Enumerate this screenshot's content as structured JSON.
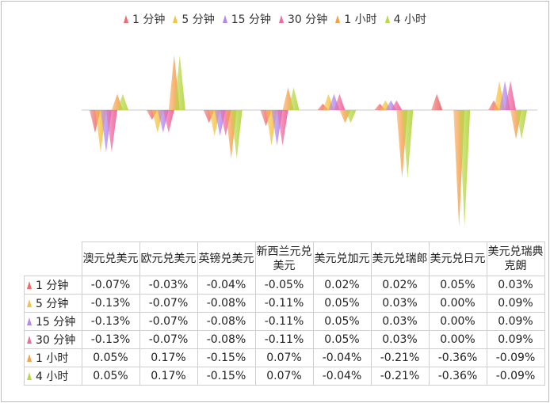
{
  "chart_data": {
    "type": "bar",
    "categories": [
      "澳元兑美元",
      "欧元兑美元",
      "英镑兑美元",
      "新西兰元兑美元",
      "美元兑加元",
      "美元兑瑞郎",
      "美元兑日元",
      "美元兑瑞典克朗"
    ],
    "series": [
      {
        "name": "1 分钟",
        "values": [
          -0.07,
          -0.03,
          -0.04,
          -0.05,
          0.02,
          0.02,
          0.05,
          0.03
        ],
        "labels": [
          "-0.07%",
          "-0.03%",
          "-0.04%",
          "-0.05%",
          "0.02%",
          "0.02%",
          "0.05%",
          "0.03%"
        ],
        "color": "#f06c6c"
      },
      {
        "name": "5 分钟",
        "values": [
          -0.13,
          -0.07,
          -0.08,
          -0.11,
          0.05,
          0.03,
          0.0,
          0.09
        ],
        "labels": [
          "-0.13%",
          "-0.07%",
          "-0.08%",
          "-0.11%",
          "0.05%",
          "0.03%",
          "0.00%",
          "0.09%"
        ],
        "color": "#f5c242"
      },
      {
        "name": "15 分钟",
        "values": [
          -0.13,
          -0.07,
          -0.08,
          -0.11,
          0.05,
          0.03,
          0.0,
          0.09
        ],
        "labels": [
          "-0.13%",
          "-0.07%",
          "-0.08%",
          "-0.11%",
          "0.05%",
          "0.03%",
          "0.00%",
          "0.09%"
        ],
        "color": "#b488f0"
      },
      {
        "name": "30 分钟",
        "values": [
          -0.13,
          -0.07,
          -0.08,
          -0.11,
          0.05,
          0.03,
          0.0,
          0.09
        ],
        "labels": [
          "-0.13%",
          "-0.07%",
          "-0.08%",
          "-0.11%",
          "0.05%",
          "0.03%",
          "0.00%",
          "0.09%"
        ],
        "color": "#f06ca0"
      },
      {
        "name": "1 小时",
        "values": [
          0.05,
          0.17,
          -0.15,
          0.07,
          -0.04,
          -0.21,
          -0.36,
          -0.09
        ],
        "labels": [
          "0.05%",
          "0.17%",
          "-0.15%",
          "0.07%",
          "-0.04%",
          "-0.21%",
          "-0.36%",
          "-0.09%"
        ],
        "color": "#f5a04a"
      },
      {
        "name": "4 小时",
        "values": [
          0.05,
          0.17,
          -0.15,
          0.07,
          -0.04,
          -0.21,
          -0.36,
          -0.09
        ],
        "labels": [
          "0.05%",
          "0.17%",
          "-0.15%",
          "0.07%",
          "-0.04%",
          "-0.21%",
          "-0.36%",
          "-0.09%"
        ],
        "color": "#b8d94a"
      }
    ],
    "legend_position": "top",
    "grid": false,
    "ylim": [
      -0.36,
      0.17
    ]
  }
}
